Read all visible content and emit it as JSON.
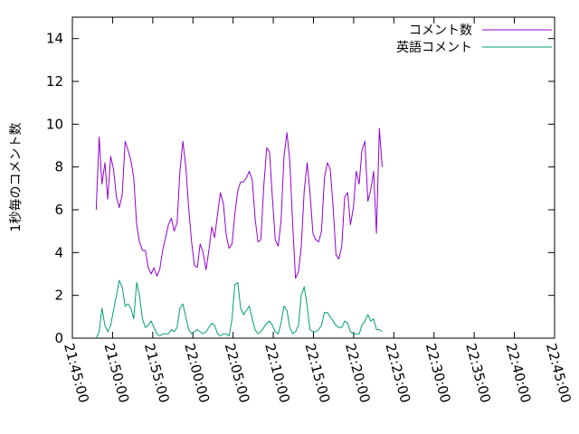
{
  "chart_data": {
    "type": "line",
    "title": "",
    "xlabel": "",
    "ylabel": "1秒毎のコメント数",
    "xlim": [
      "21:45:00",
      "22:45:00"
    ],
    "ylim": [
      0,
      15
    ],
    "x_ticks": [
      "21:45:00",
      "21:50:00",
      "21:55:00",
      "22:00:00",
      "22:05:00",
      "22:10:00",
      "22:15:00",
      "22:20:00",
      "22:25:00",
      "22:30:00",
      "22:35:00",
      "22:40:00",
      "22:45:00"
    ],
    "y_ticks": [
      "0",
      "2",
      "4",
      "6",
      "8",
      "10",
      "12",
      "14"
    ],
    "grid": false,
    "legend_position": "top-right",
    "series": [
      {
        "name": "コメント数",
        "color": "#9400d3",
        "points": [
          [
            "21:47:58",
            6.0
          ],
          [
            "21:48:20",
            9.4
          ],
          [
            "21:48:41",
            7.2
          ],
          [
            "21:49:03",
            8.2
          ],
          [
            "21:49:24",
            6.5
          ],
          [
            "21:49:46",
            8.5
          ],
          [
            "21:50:07",
            7.9
          ],
          [
            "21:50:29",
            6.6
          ],
          [
            "21:50:50",
            6.1
          ],
          [
            "21:51:12",
            6.7
          ],
          [
            "21:51:34",
            9.2
          ],
          [
            "21:51:55",
            8.8
          ],
          [
            "21:52:17",
            8.3
          ],
          [
            "21:52:38",
            7.5
          ],
          [
            "21:53:00",
            5.3
          ],
          [
            "21:53:21",
            4.5
          ],
          [
            "21:53:43",
            4.1
          ],
          [
            "21:54:05",
            4.1
          ],
          [
            "21:54:26",
            3.3
          ],
          [
            "21:54:48",
            3.0
          ],
          [
            "21:55:09",
            3.3
          ],
          [
            "21:55:31",
            2.9
          ],
          [
            "21:55:52",
            3.2
          ],
          [
            "21:56:14",
            4.1
          ],
          [
            "21:56:36",
            4.7
          ],
          [
            "21:56:57",
            5.3
          ],
          [
            "21:57:19",
            5.6
          ],
          [
            "21:57:40",
            5.0
          ],
          [
            "21:58:02",
            5.4
          ],
          [
            "21:58:23",
            7.8
          ],
          [
            "21:58:45",
            9.2
          ],
          [
            "21:59:07",
            8.0
          ],
          [
            "21:59:28",
            6.1
          ],
          [
            "21:59:50",
            4.5
          ],
          [
            "22:00:11",
            3.4
          ],
          [
            "22:00:33",
            3.3
          ],
          [
            "22:00:54",
            4.4
          ],
          [
            "22:01:16",
            4.0
          ],
          [
            "22:01:38",
            3.2
          ],
          [
            "22:01:59",
            4.1
          ],
          [
            "22:02:21",
            5.2
          ],
          [
            "22:02:42",
            4.7
          ],
          [
            "22:03:04",
            5.8
          ],
          [
            "22:03:25",
            6.8
          ],
          [
            "22:03:47",
            6.3
          ],
          [
            "22:04:09",
            4.8
          ],
          [
            "22:04:30",
            4.2
          ],
          [
            "22:04:52",
            4.4
          ],
          [
            "22:05:13",
            5.8
          ],
          [
            "22:05:35",
            6.9
          ],
          [
            "22:05:56",
            7.3
          ],
          [
            "22:06:18",
            7.3
          ],
          [
            "22:06:40",
            7.5
          ],
          [
            "22:07:01",
            7.8
          ],
          [
            "22:07:23",
            7.4
          ],
          [
            "22:07:44",
            5.6
          ],
          [
            "22:08:06",
            4.5
          ],
          [
            "22:08:27",
            4.6
          ],
          [
            "22:08:49",
            7.1
          ],
          [
            "22:09:11",
            8.9
          ],
          [
            "22:09:32",
            8.7
          ],
          [
            "22:09:54",
            6.5
          ],
          [
            "22:10:15",
            4.6
          ],
          [
            "22:10:37",
            4.3
          ],
          [
            "22:10:58",
            5.5
          ],
          [
            "22:11:20",
            8.5
          ],
          [
            "22:11:42",
            9.6
          ],
          [
            "22:12:03",
            8.3
          ],
          [
            "22:12:25",
            5.3
          ],
          [
            "22:12:46",
            2.8
          ],
          [
            "22:13:08",
            3.1
          ],
          [
            "22:13:29",
            4.3
          ],
          [
            "22:13:51",
            6.9
          ],
          [
            "22:14:13",
            8.2
          ],
          [
            "22:14:34",
            6.8
          ],
          [
            "22:14:56",
            4.9
          ],
          [
            "22:15:17",
            4.6
          ],
          [
            "22:15:39",
            4.5
          ],
          [
            "22:16:00",
            5.0
          ],
          [
            "22:16:22",
            7.5
          ],
          [
            "22:16:44",
            8.2
          ],
          [
            "22:17:05",
            7.9
          ],
          [
            "22:17:27",
            6.1
          ],
          [
            "22:17:48",
            3.9
          ],
          [
            "22:18:10",
            3.7
          ],
          [
            "22:18:31",
            4.3
          ],
          [
            "22:18:53",
            6.6
          ],
          [
            "22:19:15",
            6.8
          ],
          [
            "22:19:36",
            5.3
          ],
          [
            "22:19:58",
            6.1
          ],
          [
            "22:20:19",
            7.8
          ],
          [
            "22:20:41",
            7.2
          ],
          [
            "22:21:02",
            8.8
          ],
          [
            "22:21:24",
            9.2
          ],
          [
            "22:21:46",
            6.4
          ],
          [
            "22:22:07",
            6.9
          ],
          [
            "22:22:29",
            7.8
          ],
          [
            "22:22:50",
            4.9
          ],
          [
            "22:23:12",
            9.8
          ],
          [
            "22:23:33",
            8.0
          ]
        ]
      },
      {
        "name": "英語コメント",
        "color": "#009e73",
        "points": [
          [
            "21:47:58",
            0.0
          ],
          [
            "21:48:20",
            0.3
          ],
          [
            "21:48:41",
            1.4
          ],
          [
            "21:49:03",
            0.6
          ],
          [
            "21:49:24",
            0.3
          ],
          [
            "21:49:46",
            0.6
          ],
          [
            "21:50:07",
            1.3
          ],
          [
            "21:50:29",
            2.0
          ],
          [
            "21:50:50",
            2.7
          ],
          [
            "21:51:12",
            2.4
          ],
          [
            "21:51:34",
            1.5
          ],
          [
            "21:51:55",
            1.6
          ],
          [
            "21:52:17",
            1.4
          ],
          [
            "21:52:38",
            0.9
          ],
          [
            "21:53:00",
            2.6
          ],
          [
            "21:53:21",
            2.0
          ],
          [
            "21:53:43",
            0.9
          ],
          [
            "21:54:05",
            0.5
          ],
          [
            "21:54:26",
            0.6
          ],
          [
            "21:54:48",
            0.8
          ],
          [
            "21:55:09",
            0.5
          ],
          [
            "21:55:31",
            0.2
          ],
          [
            "21:55:52",
            0.1
          ],
          [
            "21:56:14",
            0.2
          ],
          [
            "21:56:36",
            0.2
          ],
          [
            "21:56:57",
            0.2
          ],
          [
            "21:57:19",
            0.4
          ],
          [
            "21:57:40",
            0.3
          ],
          [
            "21:58:02",
            0.5
          ],
          [
            "21:58:23",
            1.4
          ],
          [
            "21:58:45",
            1.6
          ],
          [
            "21:59:07",
            1.0
          ],
          [
            "21:59:28",
            0.4
          ],
          [
            "21:59:50",
            0.2
          ],
          [
            "22:00:11",
            0.3
          ],
          [
            "22:00:33",
            0.4
          ],
          [
            "22:00:54",
            0.3
          ],
          [
            "22:01:16",
            0.2
          ],
          [
            "22:01:38",
            0.3
          ],
          [
            "22:01:59",
            0.5
          ],
          [
            "22:02:21",
            0.7
          ],
          [
            "22:02:42",
            0.6
          ],
          [
            "22:03:04",
            0.2
          ],
          [
            "22:03:25",
            0.1
          ],
          [
            "22:03:47",
            0.2
          ],
          [
            "22:04:09",
            0.2
          ],
          [
            "22:04:30",
            0.1
          ],
          [
            "22:04:52",
            0.9
          ],
          [
            "22:05:13",
            2.5
          ],
          [
            "22:05:35",
            2.6
          ],
          [
            "22:05:56",
            1.4
          ],
          [
            "22:06:18",
            1.1
          ],
          [
            "22:06:40",
            1.3
          ],
          [
            "22:07:01",
            1.5
          ],
          [
            "22:07:23",
            0.9
          ],
          [
            "22:07:44",
            0.4
          ],
          [
            "22:08:06",
            0.2
          ],
          [
            "22:08:27",
            0.3
          ],
          [
            "22:08:49",
            0.5
          ],
          [
            "22:09:11",
            0.7
          ],
          [
            "22:09:32",
            0.8
          ],
          [
            "22:09:54",
            0.6
          ],
          [
            "22:10:15",
            0.3
          ],
          [
            "22:10:37",
            0.2
          ],
          [
            "22:10:58",
            0.7
          ],
          [
            "22:11:20",
            1.5
          ],
          [
            "22:11:42",
            1.3
          ],
          [
            "22:12:03",
            0.5
          ],
          [
            "22:12:25",
            0.2
          ],
          [
            "22:12:46",
            0.3
          ],
          [
            "22:13:08",
            0.6
          ],
          [
            "22:13:29",
            2.0
          ],
          [
            "22:13:51",
            2.4
          ],
          [
            "22:14:13",
            1.5
          ],
          [
            "22:14:34",
            0.4
          ],
          [
            "22:14:56",
            0.3
          ],
          [
            "22:15:17",
            0.3
          ],
          [
            "22:15:39",
            0.4
          ],
          [
            "22:16:00",
            0.6
          ],
          [
            "22:16:22",
            1.2
          ],
          [
            "22:16:44",
            1.2
          ],
          [
            "22:17:05",
            1.0
          ],
          [
            "22:17:27",
            0.8
          ],
          [
            "22:17:48",
            0.6
          ],
          [
            "22:18:10",
            0.5
          ],
          [
            "22:18:31",
            0.5
          ],
          [
            "22:18:53",
            0.8
          ],
          [
            "22:19:15",
            0.7
          ],
          [
            "22:19:36",
            0.3
          ],
          [
            "22:19:58",
            0.2
          ],
          [
            "22:20:19",
            0.2
          ],
          [
            "22:20:41",
            0.2
          ],
          [
            "22:21:02",
            0.6
          ],
          [
            "22:21:24",
            0.8
          ],
          [
            "22:21:46",
            1.1
          ],
          [
            "22:22:07",
            0.8
          ],
          [
            "22:22:29",
            0.9
          ],
          [
            "22:22:50",
            0.4
          ],
          [
            "22:23:12",
            0.4
          ],
          [
            "22:23:33",
            0.3
          ]
        ]
      }
    ]
  }
}
